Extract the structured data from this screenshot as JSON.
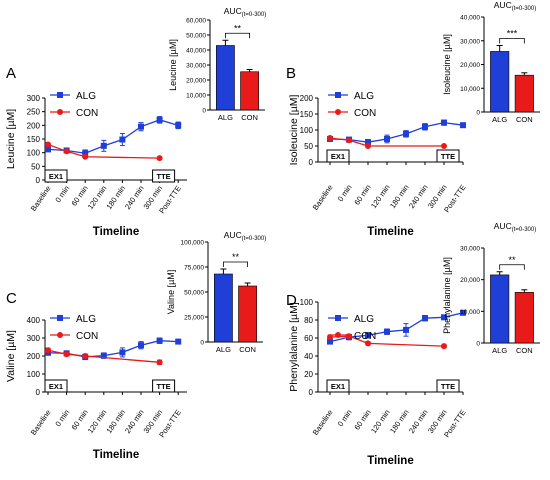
{
  "panels": [
    {
      "label": "A",
      "main": {
        "type": "line",
        "ylabel": "Leucine [µM]",
        "xlabel": "Timeline",
        "ylim": [
          0,
          300
        ],
        "yticks": [
          0,
          50,
          100,
          150,
          200,
          250,
          300
        ],
        "categories": [
          "Baseline",
          "0 min",
          "60 min",
          "120 min",
          "180 min",
          "240 min",
          "300 min",
          "Post-TTE"
        ],
        "series": [
          {
            "name": "ALG",
            "color": "#1f3fd6",
            "marker": "square",
            "values": [
              112,
              108,
              98,
              125,
              148,
              195,
              220,
              200
            ],
            "err": [
              5,
              6,
              12,
              20,
              22,
              15,
              12,
              12
            ]
          },
          {
            "name": "CON",
            "color": "#e81a1a",
            "marker": "circle",
            "values": [
              130,
              105,
              85,
              null,
              null,
              null,
              80,
              null
            ],
            "err": [
              6,
              5,
              4,
              0,
              0,
              0,
              3,
              0
            ]
          }
        ],
        "markers": [
          "EX1",
          "TTE"
        ]
      },
      "inset": {
        "type": "bar",
        "title": "AUC",
        "title_sub": "(t=0-300)",
        "ylabel": "Leucine [µM]",
        "categories": [
          "ALG",
          "CON"
        ],
        "values": [
          43000,
          25500
        ],
        "err": [
          3500,
          1500
        ],
        "colors": [
          "#1f3fd6",
          "#e81a1a"
        ],
        "ylim": [
          0,
          60000
        ],
        "yticks": [
          0,
          10000,
          20000,
          30000,
          40000,
          50000,
          60000
        ],
        "ytick_labels": [
          "0",
          "10,000",
          "20,000",
          "30,000",
          "40,000",
          "50,000",
          "60,000"
        ],
        "significance": "**"
      }
    },
    {
      "label": "B",
      "main": {
        "type": "line",
        "ylabel": "Isoleucine [µM]",
        "xlabel": "Timeline",
        "ylim": [
          0,
          200
        ],
        "yticks": [
          0,
          50,
          100,
          150,
          200
        ],
        "categories": [
          "Baseline",
          "0 min",
          "60 min",
          "120 min",
          "180 min",
          "240 min",
          "300 min",
          "Post-TTE"
        ],
        "series": [
          {
            "name": "ALG",
            "color": "#1f3fd6",
            "marker": "square",
            "values": [
              72,
              70,
              62,
              72,
              88,
              110,
              123,
              115
            ],
            "err": [
              4,
              4,
              8,
              12,
              10,
              10,
              8,
              6
            ]
          },
          {
            "name": "CON",
            "color": "#e81a1a",
            "marker": "circle",
            "values": [
              75,
              68,
              50,
              null,
              null,
              null,
              50,
              null
            ],
            "err": [
              5,
              4,
              4,
              0,
              0,
              0,
              3,
              0
            ]
          }
        ],
        "markers": [
          "EX1",
          "TTE"
        ]
      },
      "inset": {
        "type": "bar",
        "title": "AUC",
        "title_sub": "(t=0-300)",
        "ylabel": "Isoleucine [µM]",
        "categories": [
          "ALG",
          "CON"
        ],
        "values": [
          25500,
          15500
        ],
        "err": [
          2500,
          1000
        ],
        "colors": [
          "#1f3fd6",
          "#e81a1a"
        ],
        "ylim": [
          0,
          40000
        ],
        "yticks": [
          0,
          10000,
          20000,
          30000,
          40000
        ],
        "ytick_labels": [
          "0",
          "10,000",
          "20,000",
          "30,000",
          "40,000"
        ],
        "significance": "***"
      }
    },
    {
      "label": "C",
      "main": {
        "type": "line",
        "ylabel": "Valine [µM]",
        "xlabel": "Timeline",
        "ylim": [
          0,
          400
        ],
        "yticks": [
          0,
          100,
          200,
          300,
          400
        ],
        "categories": [
          "Baseline",
          "0 min",
          "60 min",
          "120 min",
          "180 min",
          "240 min",
          "300 min",
          "Post-TTE"
        ],
        "series": [
          {
            "name": "ALG",
            "color": "#1f3fd6",
            "marker": "square",
            "values": [
              218,
              215,
              195,
              202,
              220,
              260,
              285,
              280
            ],
            "err": [
              10,
              10,
              15,
              15,
              25,
              20,
              15,
              12
            ]
          },
          {
            "name": "CON",
            "color": "#e81a1a",
            "marker": "circle",
            "values": [
              232,
              210,
              200,
              null,
              null,
              null,
              165,
              null
            ],
            "err": [
              12,
              10,
              8,
              0,
              0,
              0,
              12,
              0
            ]
          }
        ],
        "markers": [
          "EX1",
          "TTE"
        ]
      },
      "inset": {
        "type": "bar",
        "title": "AUC",
        "title_sub": "(t=0-300)",
        "ylabel": "Valine [µM]",
        "categories": [
          "ALG",
          "CON"
        ],
        "values": [
          68000,
          56000
        ],
        "err": [
          5000,
          3000
        ],
        "colors": [
          "#1f3fd6",
          "#e81a1a"
        ],
        "ylim": [
          0,
          100000
        ],
        "yticks": [
          0,
          25000,
          50000,
          75000,
          100000
        ],
        "ytick_labels": [
          "0",
          "25,000",
          "50,000",
          "75,000",
          "100,000"
        ],
        "significance": "**"
      }
    },
    {
      "label": "D",
      "main": {
        "type": "line",
        "ylabel": "Phenylalanine [µM]",
        "xlabel": "Timeline",
        "ylim": [
          0,
          100
        ],
        "yticks": [
          0,
          20,
          40,
          60,
          80,
          100
        ],
        "categories": [
          "Baseline",
          "0 min",
          "60 min",
          "120 min",
          "180 min",
          "240 min",
          "300 min",
          "Post-TTE"
        ],
        "series": [
          {
            "name": "ALG",
            "color": "#1f3fd6",
            "marker": "square",
            "values": [
              56,
              61,
              63,
              67,
              69,
              82,
              83,
              88
            ],
            "err": [
              2,
              3,
              3,
              3,
              7,
              3,
              2,
              2
            ]
          },
          {
            "name": "CON",
            "color": "#e81a1a",
            "marker": "circle",
            "values": [
              61,
              62,
              54,
              null,
              null,
              null,
              51,
              null
            ],
            "err": [
              2,
              2,
              2,
              0,
              0,
              0,
              2,
              0
            ]
          }
        ],
        "markers": [
          "EX1",
          "TTE"
        ]
      },
      "inset": {
        "type": "bar",
        "title": "AUC",
        "title_sub": "(t=0-300)",
        "ylabel": "Phenylalanine [µM]",
        "categories": [
          "ALG",
          "CON"
        ],
        "values": [
          21500,
          16000
        ],
        "err": [
          1000,
          800
        ],
        "colors": [
          "#1f3fd6",
          "#e81a1a"
        ],
        "ylim": [
          0,
          30000
        ],
        "yticks": [
          0,
          10000,
          20000,
          30000
        ],
        "ytick_labels": [
          "0",
          "10,000",
          "20,000",
          "30,000"
        ],
        "significance": "**"
      }
    }
  ]
}
